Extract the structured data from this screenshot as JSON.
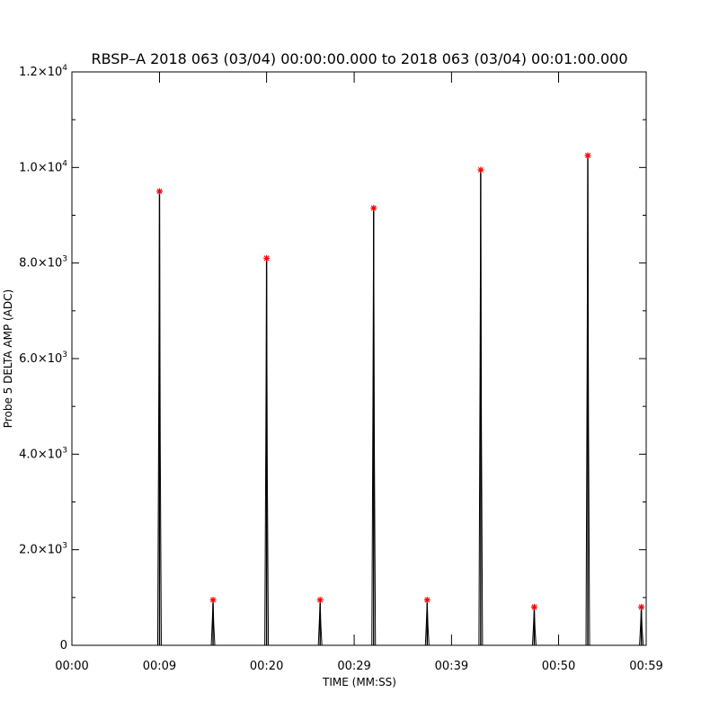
{
  "chart_data": {
    "type": "line",
    "title": "RBSP–A 2018 063 (03/04) 00:00:00.000 to 2018 063 (03/04) 00:01:00.000",
    "xlabel": "TIME (MM:SS)",
    "ylabel": "Probe 5 DELTA AMP (ADC)",
    "xlim": [
      0,
      59
    ],
    "ylim": [
      0,
      12000
    ],
    "x_tick_labels": [
      {
        "t": 0,
        "label": "00:00"
      },
      {
        "t": 9,
        "label": "00:09"
      },
      {
        "t": 20,
        "label": "00:20"
      },
      {
        "t": 29,
        "label": "00:29"
      },
      {
        "t": 39,
        "label": "00:39"
      },
      {
        "t": 50,
        "label": "00:50"
      },
      {
        "t": 59,
        "label": "00:59"
      }
    ],
    "y_tick_labels": [
      {
        "v": 0,
        "mant": "0",
        "exp": ""
      },
      {
        "v": 2000,
        "mant": "2.0×10",
        "exp": "3"
      },
      {
        "v": 4000,
        "mant": "4.0×10",
        "exp": "3"
      },
      {
        "v": 6000,
        "mant": "6.0×10",
        "exp": "3"
      },
      {
        "v": 8000,
        "mant": "8.0×10",
        "exp": "3"
      },
      {
        "v": 10000,
        "mant": "1.0×10",
        "exp": "4"
      },
      {
        "v": 12000,
        "mant": "1.2×10",
        "exp": "4"
      }
    ],
    "peaks": [
      {
        "t": 9.0,
        "value": 9500
      },
      {
        "t": 14.5,
        "value": 950
      },
      {
        "t": 20.0,
        "value": 8100
      },
      {
        "t": 25.5,
        "value": 950
      },
      {
        "t": 31.0,
        "value": 9150
      },
      {
        "t": 36.5,
        "value": 950
      },
      {
        "t": 42.0,
        "value": 9950
      },
      {
        "t": 47.5,
        "value": 800
      },
      {
        "t": 53.0,
        "value": 10250
      },
      {
        "t": 58.5,
        "value": 800
      }
    ],
    "marker_color": "#ff0000",
    "line_color": "#000000",
    "grid": false
  }
}
